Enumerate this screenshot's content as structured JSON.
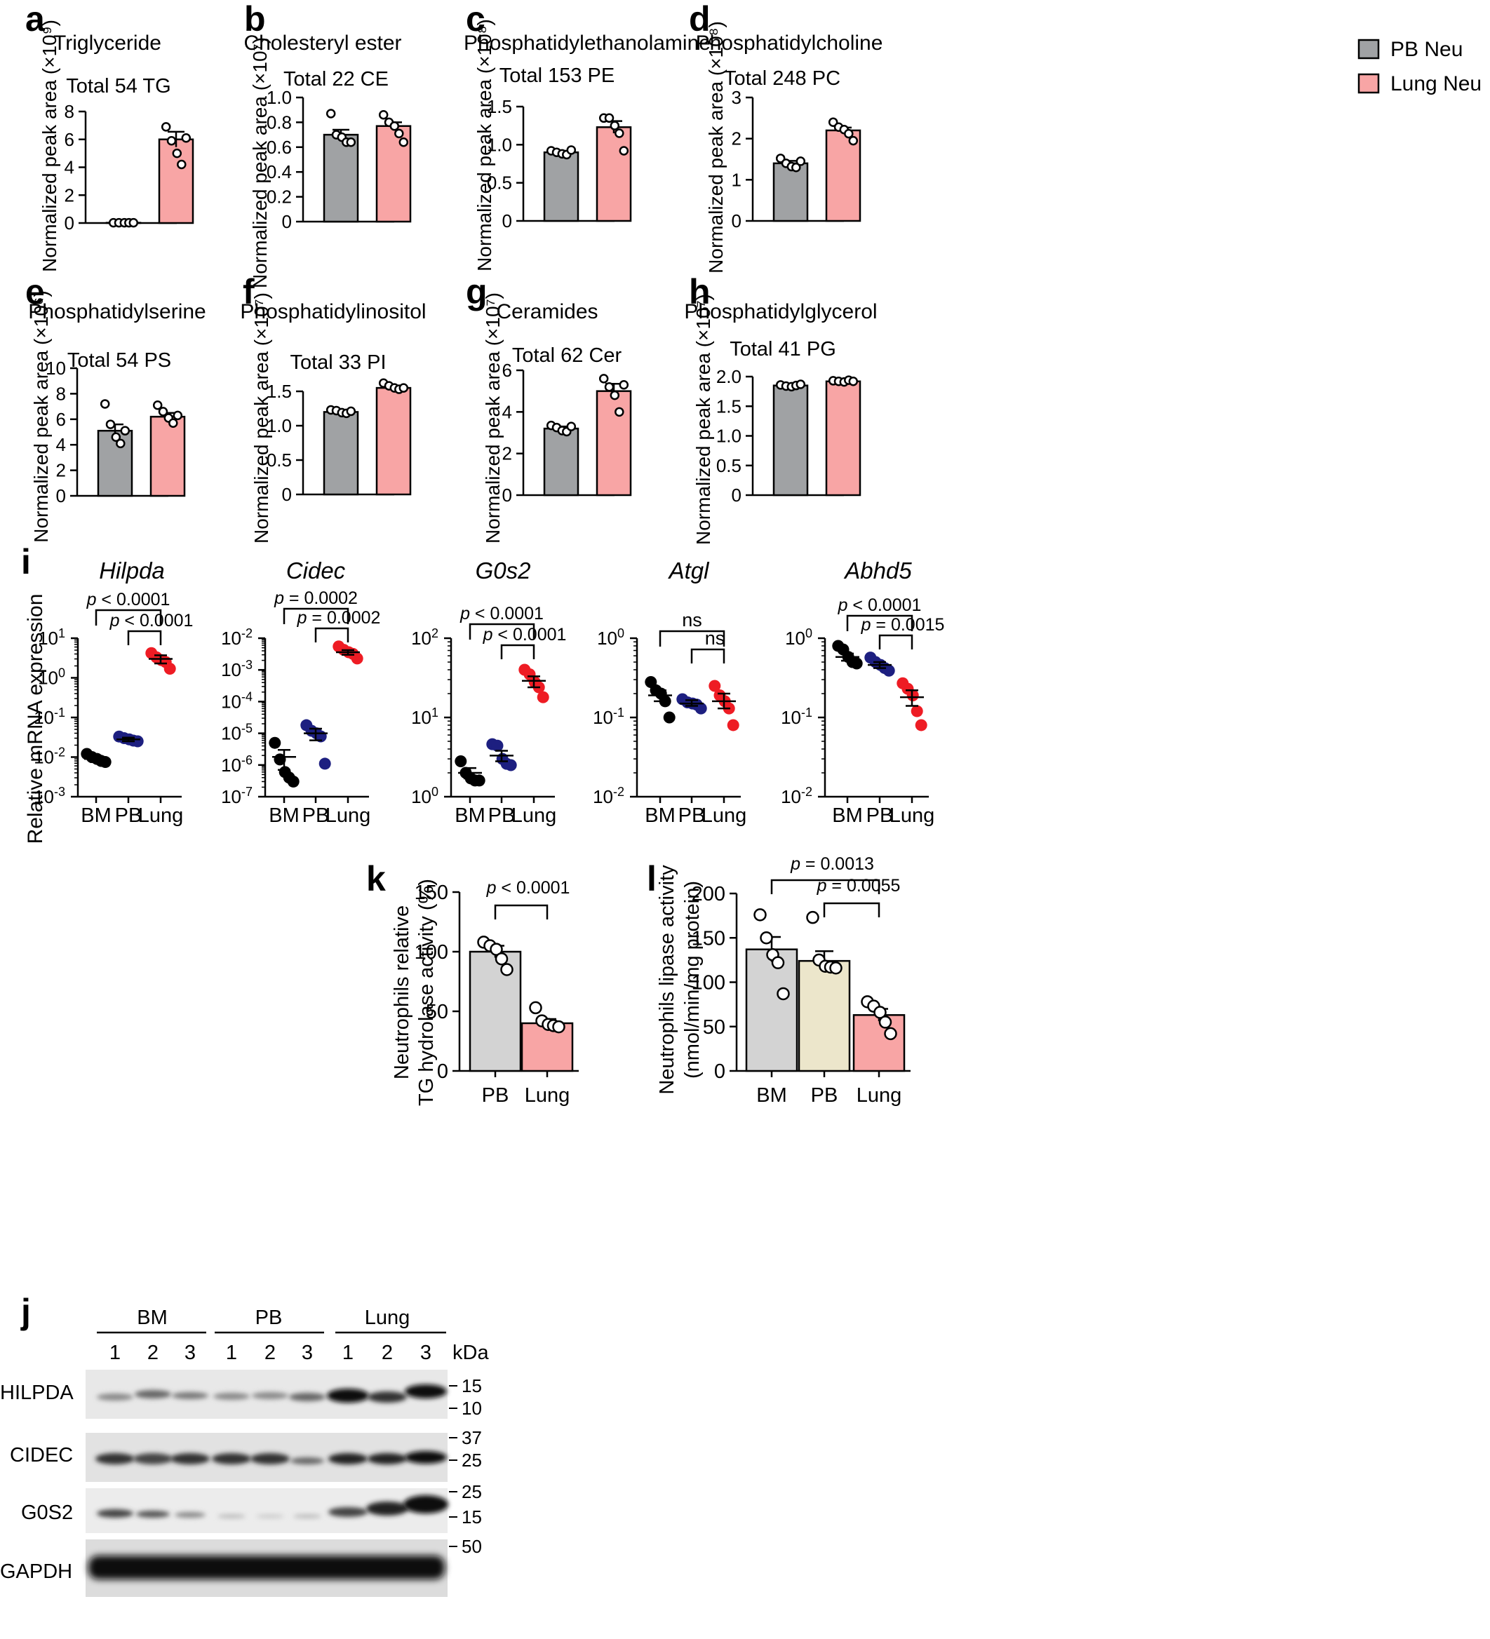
{
  "legend": {
    "items": [
      {
        "label": "PB Neu",
        "color": "#a0a2a4"
      },
      {
        "label": "Lung Neu",
        "color": "#f8a5a5"
      }
    ]
  },
  "colors": {
    "gray": "#a0a2a4",
    "pink": "#f8a5a5",
    "beige": "#ece6cb",
    "lightgray": "#d3d3d3",
    "BM": "#000000",
    "PB": "#1d1f80",
    "Lung": "#ee1c24"
  },
  "lipid_ylabel_prefix": "Normalized peak area",
  "chart_data": [
    {
      "id": "a",
      "panel_label": "a",
      "type": "bar",
      "title": "Triglyceride",
      "total": "Total 54 TG",
      "scale": "(×10⁹)",
      "ylim": [
        0,
        8
      ],
      "ticks": [
        "0",
        "2",
        "4",
        "6",
        "8"
      ],
      "categories": [
        "PB Neu",
        "Lung Neu"
      ],
      "values": [
        0.02,
        6.0
      ],
      "sem": [
        0.01,
        0.55
      ],
      "points": [
        [
          0.02,
          0.02,
          0.02,
          0.02,
          0.02
        ],
        [
          6.9,
          5.9,
          5.0,
          4.2,
          6.1
        ]
      ]
    },
    {
      "id": "b",
      "panel_label": "b",
      "type": "bar",
      "title": "Cholesteryl ester",
      "total": "Total 22 CE",
      "scale": "(×10⁷)",
      "ylim": [
        0,
        1.0
      ],
      "ticks": [
        "0",
        "0.2",
        "0.4",
        "0.6",
        "0.8",
        "1.0"
      ],
      "categories": [
        "PB Neu",
        "Lung Neu"
      ],
      "values": [
        0.7,
        0.77
      ],
      "sem": [
        0.04,
        0.03
      ],
      "points": [
        [
          0.87,
          0.7,
          0.68,
          0.64,
          0.64
        ],
        [
          0.86,
          0.8,
          0.77,
          0.71,
          0.64
        ]
      ]
    },
    {
      "id": "c",
      "panel_label": "c",
      "type": "bar",
      "title": "Phosphatidylethanolamine",
      "total": "Total 153 PE",
      "scale": "(×10⁸)",
      "ylim": [
        0,
        1.5
      ],
      "ticks": [
        "0",
        "0.5",
        "1.0",
        "1.5"
      ],
      "categories": [
        "PB Neu",
        "Lung Neu"
      ],
      "values": [
        0.9,
        1.23
      ],
      "sem": [
        0.02,
        0.08
      ],
      "points": [
        [
          0.92,
          0.9,
          0.88,
          0.87,
          0.93
        ],
        [
          1.35,
          1.35,
          1.25,
          1.15,
          0.92
        ]
      ]
    },
    {
      "id": "d",
      "panel_label": "d",
      "type": "bar",
      "title": "Phosphatidylcholine",
      "total": "Total 248 PC",
      "scale": "(×10⁸)",
      "ylim": [
        0,
        3
      ],
      "ticks": [
        "0",
        "1",
        "2",
        "3"
      ],
      "categories": [
        "PB Neu",
        "Lung Neu"
      ],
      "values": [
        1.4,
        2.2
      ],
      "sem": [
        0.06,
        0.07
      ],
      "points": [
        [
          1.52,
          1.4,
          1.32,
          1.3,
          1.45
        ],
        [
          2.4,
          2.28,
          2.22,
          2.12,
          1.95
        ]
      ]
    },
    {
      "id": "e",
      "panel_label": "e",
      "type": "bar",
      "title": "Phosphatidylserine",
      "total": "Total 54 PS",
      "scale": "(×10⁶)",
      "ylim": [
        0,
        10
      ],
      "ticks": [
        "0",
        "2",
        "4",
        "6",
        "8",
        "10"
      ],
      "categories": [
        "PB Neu",
        "Lung Neu"
      ],
      "values": [
        5.1,
        6.2
      ],
      "sem": [
        0.5,
        0.3
      ],
      "points": [
        [
          7.2,
          5.6,
          4.6,
          4.1,
          5.1
        ],
        [
          7.1,
          6.6,
          6.1,
          5.7,
          6.3
        ]
      ]
    },
    {
      "id": "f",
      "panel_label": "f",
      "type": "bar",
      "title": "Phosphatidylinositol",
      "total": "Total 33 PI",
      "scale": "(×10⁷)",
      "ylim": [
        0,
        1.5
      ],
      "ticks": [
        "0",
        "0.5",
        "1.0",
        "1.5"
      ],
      "categories": [
        "PB Neu",
        "Lung Neu"
      ],
      "values": [
        1.2,
        1.55
      ],
      "sem": [
        0.02,
        0.03
      ],
      "points": [
        [
          1.23,
          1.22,
          1.19,
          1.18,
          1.21
        ],
        [
          1.62,
          1.58,
          1.55,
          1.53,
          1.55
        ]
      ]
    },
    {
      "id": "g",
      "panel_label": "g",
      "type": "bar",
      "title": "Ceramides",
      "total": "Total 62 Cer",
      "scale": "(×10⁷)",
      "ylim": [
        0,
        6
      ],
      "ticks": [
        "0",
        "2",
        "4",
        "6"
      ],
      "categories": [
        "PB Neu",
        "Lung Neu"
      ],
      "values": [
        3.2,
        5.0
      ],
      "sem": [
        0.1,
        0.35
      ],
      "points": [
        [
          3.35,
          3.25,
          3.1,
          3.05,
          3.3
        ],
        [
          5.6,
          5.2,
          4.8,
          4.0,
          5.3
        ]
      ]
    },
    {
      "id": "h",
      "panel_label": "h",
      "type": "bar",
      "title": "Phosphatidylglycerol",
      "total": "Total 41 PG",
      "scale": "(×10⁷)",
      "ylim": [
        0,
        2.0
      ],
      "ticks": [
        "0",
        "0.5",
        "1.0",
        "1.5",
        "2.0"
      ],
      "categories": [
        "PB Neu",
        "Lung Neu"
      ],
      "values": [
        1.85,
        1.92
      ],
      "sem": [
        0.02,
        0.01
      ],
      "points": [
        [
          1.86,
          1.84,
          1.83,
          1.85,
          1.87
        ],
        [
          1.93,
          1.92,
          1.91,
          1.94,
          1.92
        ]
      ]
    },
    {
      "id": "i1",
      "panel_label": "i",
      "type": "scatter",
      "title": "Hilpda",
      "scale_type": "log",
      "ylabel": "Relative mRNA expression",
      "logmin": -3,
      "logmax": 1,
      "ticks": [
        {
          "b": "10",
          "e": "1"
        },
        {
          "b": "10",
          "e": "0"
        },
        {
          "b": "10",
          "e": "-1"
        },
        {
          "b": "10",
          "e": "-2"
        },
        {
          "b": "10",
          "e": "-3"
        }
      ],
      "categories": [
        "BM",
        "PB",
        "Lung"
      ],
      "means": [
        0.009,
        0.028,
        3.0
      ],
      "sems_lo": [
        0.0075,
        0.025,
        2.3
      ],
      "sems_hi": [
        0.0108,
        0.031,
        3.7
      ],
      "points": [
        [
          0.012,
          0.01,
          0.009,
          0.008,
          0.0075
        ],
        [
          0.033,
          0.03,
          0.028,
          0.026,
          0.025
        ],
        [
          4.2,
          3.3,
          2.8,
          2.5,
          1.7
        ]
      ],
      "p_values": [
        "p < 0.0001",
        "p < 0.0001"
      ]
    },
    {
      "id": "i2",
      "panel_label": "",
      "type": "scatter",
      "title": "Cidec",
      "scale_type": "log",
      "logmin": -7,
      "logmax": -2,
      "ticks": [
        {
          "b": "10",
          "e": "-2"
        },
        {
          "b": "10",
          "e": "-3"
        },
        {
          "b": "10",
          "e": "-4"
        },
        {
          "b": "10",
          "e": "-5"
        },
        {
          "b": "10",
          "e": "-6"
        },
        {
          "b": "10",
          "e": "-7"
        }
      ],
      "categories": [
        "BM",
        "PB",
        "Lung"
      ],
      "means": [
        1.8e-06,
        1e-05,
        0.0036
      ],
      "sems_lo": [
        7e-07,
        6e-06,
        0.003
      ],
      "sems_hi": [
        3e-06,
        1.4e-05,
        0.0042
      ],
      "points": [
        [
          5e-06,
          1.5e-06,
          6e-07,
          4e-07,
          3e-07
        ],
        [
          1.8e-05,
          1.2e-05,
          1e-05,
          8e-06,
          1.1e-06
        ],
        [
          0.0055,
          0.0043,
          0.0036,
          0.0032,
          0.0023
        ]
      ],
      "p_values": [
        "p = 0.0002",
        "p = 0.0002"
      ]
    },
    {
      "id": "i3",
      "panel_label": "",
      "type": "scatter",
      "title": "G0s2",
      "scale_type": "log",
      "logmin": 0,
      "logmax": 2,
      "ticks": [
        {
          "b": "10",
          "e": "2"
        },
        {
          "b": "10",
          "e": "1"
        },
        {
          "b": "10",
          "e": "0"
        }
      ],
      "categories": [
        "BM",
        "PB",
        "Lung"
      ],
      "means": [
        2.0,
        3.3,
        29
      ],
      "sems_lo": [
        1.7,
        2.8,
        24
      ],
      "sems_hi": [
        2.3,
        3.8,
        33
      ],
      "points": [
        [
          2.8,
          2.0,
          1.7,
          1.6,
          1.6
        ],
        [
          4.6,
          4.4,
          3.0,
          2.6,
          2.5
        ],
        [
          40,
          35,
          28,
          24,
          18
        ]
      ],
      "p_values": [
        "p < 0.0001",
        "p < 0.0001"
      ]
    },
    {
      "id": "i4",
      "panel_label": "",
      "type": "scatter",
      "title": "Atgl",
      "scale_type": "log",
      "logmin": -2,
      "logmax": 0,
      "ticks": [
        {
          "b": "10",
          "e": "0"
        },
        {
          "b": "10",
          "e": "-1"
        },
        {
          "b": "10",
          "e": "-2"
        }
      ],
      "categories": [
        "BM",
        "PB",
        "Lung"
      ],
      "means": [
        0.19,
        0.15,
        0.16
      ],
      "sems_lo": [
        0.16,
        0.14,
        0.13
      ],
      "sems_hi": [
        0.22,
        0.165,
        0.2
      ],
      "points": [
        [
          0.28,
          0.22,
          0.2,
          0.16,
          0.1
        ],
        [
          0.17,
          0.155,
          0.15,
          0.145,
          0.13
        ],
        [
          0.25,
          0.19,
          0.16,
          0.13,
          0.08
        ]
      ],
      "p_values": [
        "ns",
        "ns"
      ]
    },
    {
      "id": "i5",
      "panel_label": "",
      "type": "scatter",
      "title": "Abhd5",
      "scale_type": "log",
      "logmin": -2,
      "logmax": 0,
      "ticks": [
        {
          "b": "10",
          "e": "0"
        },
        {
          "b": "10",
          "e": "-1"
        },
        {
          "b": "10",
          "e": "-2"
        }
      ],
      "categories": [
        "BM",
        "PB",
        "Lung"
      ],
      "means": [
        0.58,
        0.46,
        0.18
      ],
      "sems_lo": [
        0.52,
        0.42,
        0.14
      ],
      "sems_hi": [
        0.64,
        0.5,
        0.22
      ],
      "points": [
        [
          0.8,
          0.72,
          0.58,
          0.5,
          0.48
        ],
        [
          0.57,
          0.5,
          0.46,
          0.42,
          0.39
        ],
        [
          0.27,
          0.23,
          0.19,
          0.12,
          0.08
        ]
      ],
      "p_values": [
        "p < 0.0001",
        "p = 0.0015"
      ]
    },
    {
      "id": "k",
      "panel_label": "k",
      "type": "bar",
      "ylabel": [
        "Neutrophils relative",
        "TG hydrolase activity (%)"
      ],
      "ylim": [
        0,
        150
      ],
      "ticks": [
        "0",
        "50",
        "100",
        "150"
      ],
      "categories": [
        "PB",
        "Lung"
      ],
      "values": [
        100,
        40
      ],
      "sem": [
        5,
        3.5
      ],
      "points": [
        [
          108,
          105,
          102,
          94,
          85
        ],
        [
          53,
          42,
          39,
          38,
          37
        ]
      ],
      "p_values": [
        "p < 0.0001"
      ]
    },
    {
      "id": "l",
      "panel_label": "l",
      "type": "bar",
      "ylabel": [
        "Neutrophils lipase activity",
        "(nmol/min/mg protein)"
      ],
      "ylim": [
        0,
        200
      ],
      "ticks": [
        "0",
        "50",
        "100",
        "150",
        "200"
      ],
      "categories": [
        "BM",
        "PB",
        "Lung"
      ],
      "values": [
        137,
        124,
        63
      ],
      "sem": [
        14,
        11,
        7
      ],
      "points": [
        [
          176,
          150,
          131,
          122,
          87
        ],
        [
          173,
          125,
          118,
          117,
          116
        ],
        [
          78,
          73,
          66,
          55,
          42
        ]
      ],
      "p_values": [
        "p = 0.0013",
        "p = 0.0055"
      ]
    }
  ],
  "western_blot": {
    "panel_label": "j",
    "groups": [
      "BM",
      "PB",
      "Lung"
    ],
    "lanes": [
      "1",
      "2",
      "3",
      "1",
      "2",
      "3",
      "1",
      "2",
      "3"
    ],
    "kda_header": "kDa",
    "rows": [
      {
        "label": "HILPDA",
        "markers": [
          "15",
          "10"
        ]
      },
      {
        "label": "CIDEC",
        "markers": [
          "37",
          "25"
        ]
      },
      {
        "label": "G0S2",
        "markers": [
          "25",
          "15"
        ]
      },
      {
        "label": "GAPDH",
        "markers": [
          "50"
        ]
      }
    ]
  }
}
